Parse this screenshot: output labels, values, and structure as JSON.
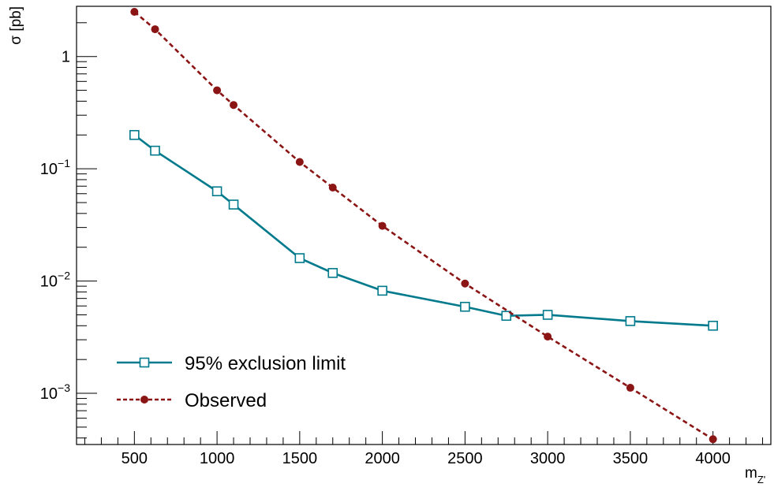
{
  "chart_data": {
    "type": "line",
    "title": "",
    "xlabel_main": "m",
    "xlabel_sub": "Z'",
    "ylabel": "σ [pb]",
    "ylog": true,
    "xlim": [
      150,
      4350
    ],
    "ylim": [
      0.00035,
      2.8
    ],
    "x_ticks": [
      500,
      1000,
      1500,
      2000,
      2500,
      3000,
      3500,
      4000
    ],
    "y_ticks": [
      {
        "value": 1,
        "base": "1",
        "exp": ""
      },
      {
        "value": 0.1,
        "base": "10",
        "exp": "−1"
      },
      {
        "value": 0.01,
        "base": "10",
        "exp": "−2"
      },
      {
        "value": 0.001,
        "base": "10",
        "exp": "−3"
      }
    ],
    "grid": false,
    "legend_position": "bottom-left",
    "series": [
      {
        "name": "95% exclusion limit",
        "color": "#007a8c",
        "line_style": "solid",
        "marker": "open-square",
        "x": [
          500,
          625,
          1000,
          1100,
          1500,
          1700,
          2000,
          2500,
          2750,
          3000,
          3500,
          4000
        ],
        "y": [
          0.2,
          0.145,
          0.063,
          0.048,
          0.016,
          0.0118,
          0.0082,
          0.0059,
          0.0049,
          0.005,
          0.0044,
          0.004
        ]
      },
      {
        "name": "Observed",
        "color": "#8b1414",
        "line_style": "dashed",
        "marker": "filled-circle",
        "x": [
          500,
          625,
          1000,
          1100,
          1500,
          1700,
          2000,
          2500,
          3000,
          3500,
          4000
        ],
        "y": [
          2.5,
          1.75,
          0.5,
          0.37,
          0.115,
          0.068,
          0.031,
          0.0095,
          0.0032,
          0.00112,
          0.00039
        ]
      }
    ]
  }
}
